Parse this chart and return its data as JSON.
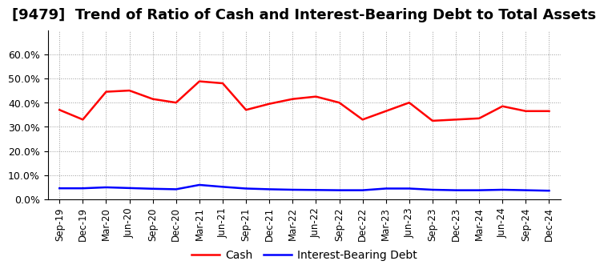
{
  "title": "[9479]  Trend of Ratio of Cash and Interest-Bearing Debt to Total Assets",
  "x_labels": [
    "Sep-19",
    "Dec-19",
    "Mar-20",
    "Jun-20",
    "Sep-20",
    "Dec-20",
    "Mar-21",
    "Jun-21",
    "Sep-21",
    "Dec-21",
    "Mar-22",
    "Jun-22",
    "Sep-22",
    "Dec-22",
    "Mar-23",
    "Jun-23",
    "Sep-23",
    "Dec-23",
    "Mar-24",
    "Jun-24",
    "Sep-24",
    "Dec-24"
  ],
  "cash": [
    0.37,
    0.33,
    0.445,
    0.45,
    0.415,
    0.4,
    0.488,
    0.48,
    0.37,
    0.395,
    0.415,
    0.425,
    0.4,
    0.33,
    0.365,
    0.4,
    0.325,
    0.33,
    0.335,
    0.385,
    0.365,
    0.365
  ],
  "interest_bearing_debt": [
    0.046,
    0.046,
    0.05,
    0.047,
    0.044,
    0.042,
    0.06,
    0.052,
    0.045,
    0.042,
    0.04,
    0.039,
    0.038,
    0.038,
    0.045,
    0.045,
    0.04,
    0.038,
    0.038,
    0.04,
    0.038,
    0.036
  ],
  "cash_color": "#ff0000",
  "debt_color": "#0000ff",
  "background_color": "#ffffff",
  "plot_bg_color": "#ffffff",
  "grid_color": "#999999",
  "ylim": [
    0.0,
    0.7
  ],
  "yticks": [
    0.0,
    0.1,
    0.2,
    0.3,
    0.4,
    0.5,
    0.6
  ],
  "legend_cash": "Cash",
  "legend_debt": "Interest-Bearing Debt",
  "title_fontsize": 13,
  "line_width": 1.8
}
